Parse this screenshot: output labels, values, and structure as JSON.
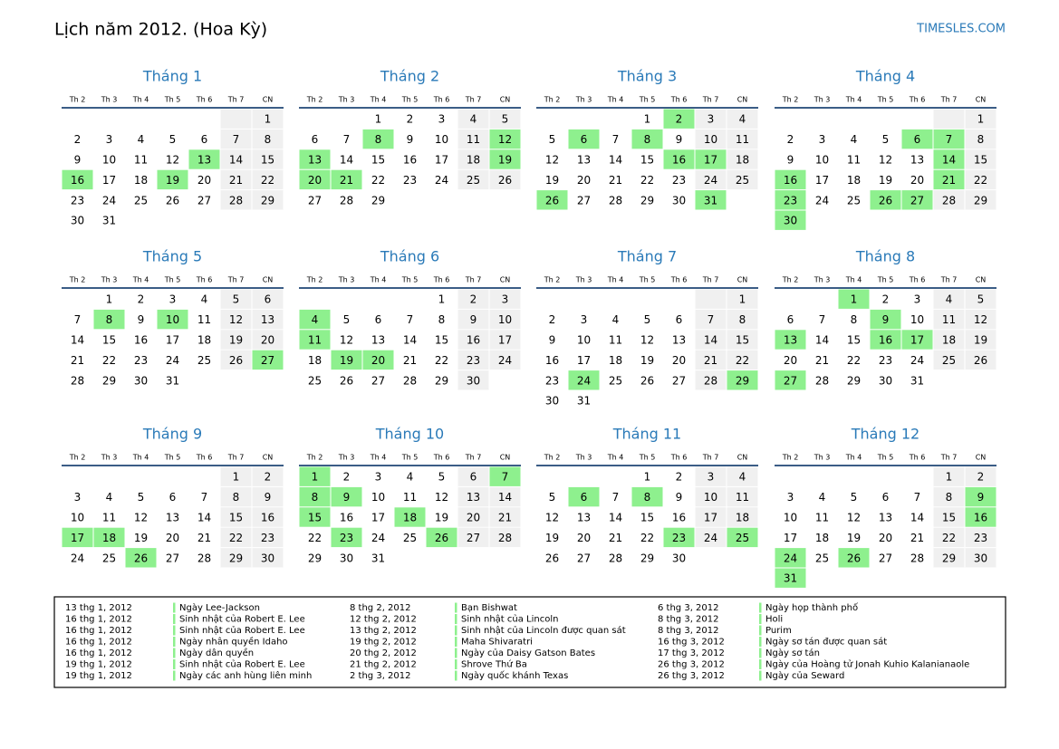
{
  "header": {
    "title": "Lịch năm 2012. (Hoa Kỳ)",
    "site": "TIMESLES.COM"
  },
  "weekdays": [
    "Th 2",
    "Th 3",
    "Th 4",
    "Th 5",
    "Th 6",
    "Th 7",
    "CN"
  ],
  "months": [
    {
      "name": "Tháng 1",
      "days": [
        null,
        null,
        null,
        null,
        null,
        null,
        1,
        2,
        3,
        4,
        5,
        6,
        7,
        8,
        9,
        10,
        11,
        12,
        13,
        14,
        15,
        16,
        17,
        18,
        19,
        20,
        21,
        22,
        23,
        24,
        25,
        26,
        27,
        28,
        29,
        30,
        31
      ],
      "holidays": [
        13,
        16,
        19
      ]
    },
    {
      "name": "Tháng 2",
      "days": [
        null,
        null,
        1,
        2,
        3,
        4,
        5,
        6,
        7,
        8,
        9,
        10,
        11,
        12,
        13,
        14,
        15,
        16,
        17,
        18,
        19,
        20,
        21,
        22,
        23,
        24,
        25,
        26,
        27,
        28,
        29
      ],
      "holidays": [
        8,
        12,
        13,
        19,
        20,
        21
      ]
    },
    {
      "name": "Tháng 3",
      "days": [
        null,
        null,
        null,
        1,
        2,
        3,
        4,
        5,
        6,
        7,
        8,
        9,
        10,
        11,
        12,
        13,
        14,
        15,
        16,
        17,
        18,
        19,
        20,
        21,
        22,
        23,
        24,
        25,
        26,
        27,
        28,
        29,
        30,
        31
      ],
      "holidays": [
        2,
        6,
        8,
        16,
        17,
        26,
        31
      ]
    },
    {
      "name": "Tháng 4",
      "days": [
        null,
        null,
        null,
        null,
        null,
        null,
        1,
        2,
        3,
        4,
        5,
        6,
        7,
        8,
        9,
        10,
        11,
        12,
        13,
        14,
        15,
        16,
        17,
        18,
        19,
        20,
        21,
        22,
        23,
        24,
        25,
        26,
        27,
        28,
        29,
        30
      ],
      "holidays": [
        6,
        7,
        14,
        16,
        21,
        23,
        26,
        27,
        30
      ]
    },
    {
      "name": "Tháng 5",
      "days": [
        null,
        1,
        2,
        3,
        4,
        5,
        6,
        7,
        8,
        9,
        10,
        11,
        12,
        13,
        14,
        15,
        16,
        17,
        18,
        19,
        20,
        21,
        22,
        23,
        24,
        25,
        26,
        27,
        28,
        29,
        30,
        31
      ],
      "holidays": [
        8,
        10,
        27
      ]
    },
    {
      "name": "Tháng 6",
      "days": [
        null,
        null,
        null,
        null,
        1,
        2,
        3,
        4,
        5,
        6,
        7,
        8,
        9,
        10,
        11,
        12,
        13,
        14,
        15,
        16,
        17,
        18,
        19,
        20,
        21,
        22,
        23,
        24,
        25,
        26,
        27,
        28,
        29,
        30
      ],
      "holidays": [
        4,
        11,
        19,
        20
      ]
    },
    {
      "name": "Tháng 7",
      "days": [
        null,
        null,
        null,
        null,
        null,
        null,
        1,
        2,
        3,
        4,
        5,
        6,
        7,
        8,
        9,
        10,
        11,
        12,
        13,
        14,
        15,
        16,
        17,
        18,
        19,
        20,
        21,
        22,
        23,
        24,
        25,
        26,
        27,
        28,
        29,
        30,
        31
      ],
      "holidays": [
        24,
        29
      ]
    },
    {
      "name": "Tháng 8",
      "days": [
        null,
        null,
        1,
        2,
        3,
        4,
        5,
        6,
        7,
        8,
        9,
        10,
        11,
        12,
        13,
        14,
        15,
        16,
        17,
        18,
        19,
        20,
        21,
        22,
        23,
        24,
        25,
        26,
        27,
        28,
        29,
        30,
        31
      ],
      "holidays": [
        1,
        9,
        13,
        16,
        17,
        27
      ]
    },
    {
      "name": "Tháng 9",
      "days": [
        null,
        null,
        null,
        null,
        null,
        1,
        2,
        3,
        4,
        5,
        6,
        7,
        8,
        9,
        10,
        11,
        12,
        13,
        14,
        15,
        16,
        17,
        18,
        19,
        20,
        21,
        22,
        23,
        24,
        25,
        26,
        27,
        28,
        29,
        30
      ],
      "holidays": [
        17,
        18,
        26
      ]
    },
    {
      "name": "Tháng 10",
      "days": [
        1,
        2,
        3,
        4,
        5,
        6,
        7,
        8,
        9,
        10,
        11,
        12,
        13,
        14,
        15,
        16,
        17,
        18,
        19,
        20,
        21,
        22,
        23,
        24,
        25,
        26,
        27,
        28,
        29,
        30,
        31
      ],
      "holidays": [
        1,
        7,
        8,
        9,
        15,
        18,
        23,
        26
      ]
    },
    {
      "name": "Tháng 11",
      "days": [
        null,
        null,
        null,
        1,
        2,
        3,
        4,
        5,
        6,
        7,
        8,
        9,
        10,
        11,
        12,
        13,
        14,
        15,
        16,
        17,
        18,
        19,
        20,
        21,
        22,
        23,
        24,
        25,
        26,
        27,
        28,
        29,
        30
      ],
      "holidays": [
        6,
        8,
        23,
        25
      ]
    },
    {
      "name": "Tháng 12",
      "days": [
        null,
        null,
        null,
        null,
        null,
        1,
        2,
        3,
        4,
        5,
        6,
        7,
        8,
        9,
        10,
        11,
        12,
        13,
        14,
        15,
        16,
        17,
        18,
        19,
        20,
        21,
        22,
        23,
        24,
        25,
        26,
        27,
        28,
        29,
        30,
        31
      ],
      "holidays": [
        9,
        16,
        24,
        26,
        31
      ]
    }
  ],
  "legend": {
    "columns": [
      {
        "rows": [
          [
            "13 thg 1, 2012",
            "Ngày Lee-Jackson"
          ],
          [
            "16 thg 1, 2012",
            "Sinh nhật của Robert E. Lee"
          ],
          [
            "16 thg 1, 2012",
            "Sinh nhật của Robert E. Lee"
          ],
          [
            "16 thg 1, 2012",
            "Ngày nhân quyền Idaho"
          ],
          [
            "16 thg 1, 2012",
            "Ngày dân quyền"
          ],
          [
            "19 thg 1, 2012",
            "Sinh nhật của Robert E. Lee"
          ],
          [
            "19 thg 1, 2012",
            "Ngày các anh hùng liên minh"
          ]
        ]
      },
      {
        "rows": [
          [
            "8 thg 2, 2012",
            "Bạn Bishwat"
          ],
          [
            "12 thg 2, 2012",
            "Sinh nhật của Lincoln"
          ],
          [
            "13 thg 2, 2012",
            "Sinh nhật của Lincoln được quan sát"
          ],
          [
            "19 thg 2, 2012",
            "Maha Shivaratri"
          ],
          [
            "20 thg 2, 2012",
            "Ngày của Daisy Gatson Bates"
          ],
          [
            "21 thg 2, 2012",
            "Shrove Thứ Ba"
          ],
          [
            "2 thg 3, 2012",
            "Ngày quốc khánh Texas"
          ]
        ]
      },
      {
        "rows": [
          [
            "6 thg 3, 2012",
            "Ngày họp thành phố"
          ],
          [
            "8 thg 3, 2012",
            "Holi"
          ],
          [
            "8 thg 3, 2012",
            "Purim"
          ],
          [
            "16 thg 3, 2012",
            "Ngày sơ tán được quan sát"
          ],
          [
            "17 thg 3, 2012",
            "Ngày sơ tán"
          ],
          [
            "26 thg 3, 2012",
            "Ngày của Hoàng tử Jonah Kuhio Kalanianaole"
          ],
          [
            "26 thg 3, 2012",
            "Ngày của Seward"
          ]
        ]
      }
    ]
  }
}
